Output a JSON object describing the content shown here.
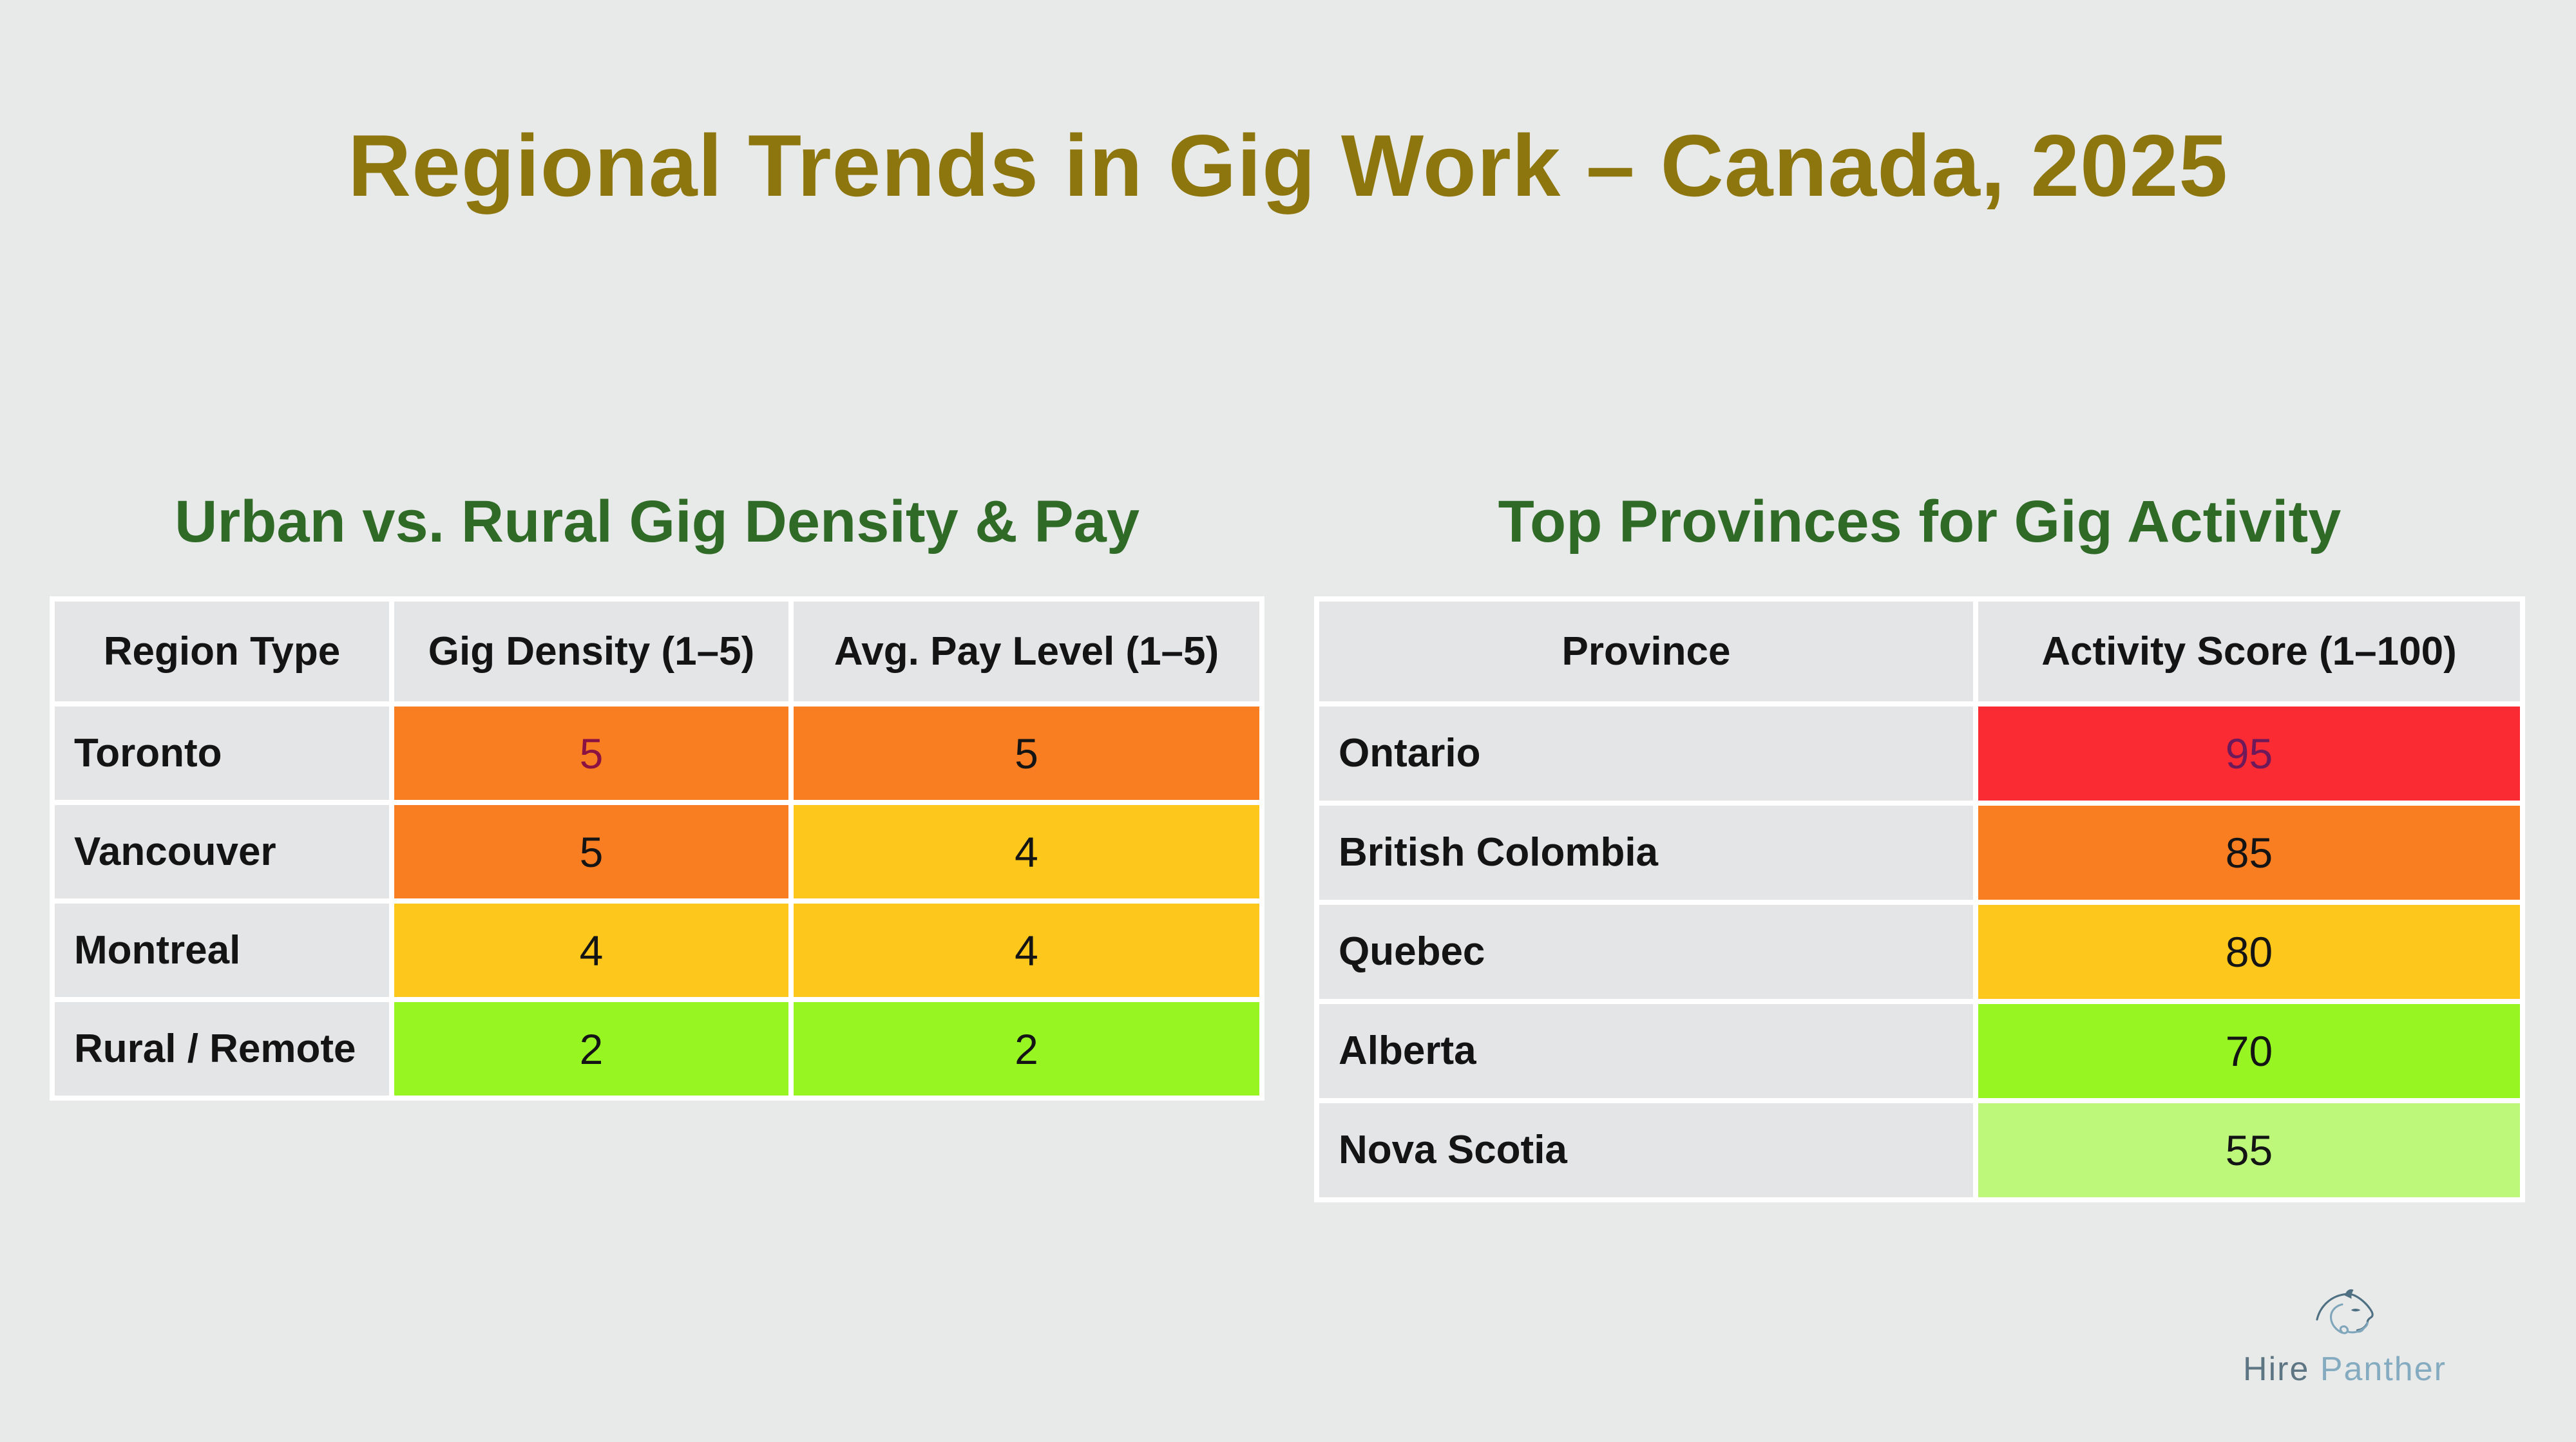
{
  "page": {
    "background": "#E8EAEA",
    "cell_gray": "#E3E5E6",
    "grid_line": "#FFFFFF"
  },
  "title": {
    "text": "Regional Trends in Gig Work – Canada, 2025",
    "color": "#8E760F"
  },
  "tables": [
    {
      "id": "urban-rural",
      "heading": "Urban vs. Rural Gig Density & Pay",
      "heading_color": "#2F6B27",
      "columns": [
        "Region Type",
        "Gig Density (1–5)",
        "Avg. Pay Level (1–5)"
      ],
      "rows": [
        {
          "label": "Toronto",
          "values": [
            {
              "text": "5",
              "bg": "#F97E22",
              "fg": "#8B1343"
            },
            {
              "text": "5",
              "bg": "#F97E22",
              "fg": "#141414"
            }
          ]
        },
        {
          "label": "Vancouver",
          "values": [
            {
              "text": "5",
              "bg": "#F97E22",
              "fg": "#141414"
            },
            {
              "text": "4",
              "bg": "#FDC71C",
              "fg": "#141414"
            }
          ]
        },
        {
          "label": "Montreal",
          "values": [
            {
              "text": "4",
              "bg": "#FDC71C",
              "fg": "#141414"
            },
            {
              "text": "4",
              "bg": "#FDC71C",
              "fg": "#141414"
            }
          ]
        },
        {
          "label": "Rural / Remote",
          "values": [
            {
              "text": "2",
              "bg": "#97F622",
              "fg": "#141414"
            },
            {
              "text": "2",
              "bg": "#97F622",
              "fg": "#141414"
            }
          ]
        }
      ]
    },
    {
      "id": "top-provinces",
      "heading": "Top Provinces for Gig Activity",
      "heading_color": "#2F6B27",
      "columns": [
        "Province",
        "Activity Score (1–100)"
      ],
      "rows": [
        {
          "label": "Ontario",
          "values": [
            {
              "text": "95",
              "bg": "#FB2B33",
              "fg": "#6E1A5A"
            }
          ]
        },
        {
          "label": "British Colombia",
          "values": [
            {
              "text": "85",
              "bg": "#F97E22",
              "fg": "#141414"
            }
          ]
        },
        {
          "label": "Quebec",
          "values": [
            {
              "text": "80",
              "bg": "#FDC71C",
              "fg": "#141414"
            }
          ]
        },
        {
          "label": "Alberta",
          "values": [
            {
              "text": "70",
              "bg": "#97F622",
              "fg": "#141414"
            }
          ]
        },
        {
          "label": "Nova Scotia",
          "values": [
            {
              "text": "55",
              "bg": "#BDF87A",
              "fg": "#141414"
            }
          ]
        }
      ]
    }
  ],
  "chart_data": [
    {
      "type": "table",
      "title": "Urban vs. Rural Gig Density & Pay",
      "columns": [
        "Region Type",
        "Gig Density (1–5)",
        "Avg. Pay Level (1–5)"
      ],
      "rows": [
        [
          "Toronto",
          5,
          5
        ],
        [
          "Vancouver",
          5,
          4
        ],
        [
          "Montreal",
          4,
          4
        ],
        [
          "Rural / Remote",
          2,
          2
        ]
      ]
    },
    {
      "type": "table",
      "title": "Top Provinces for Gig Activity",
      "columns": [
        "Province",
        "Activity Score (1–100)"
      ],
      "rows": [
        [
          "Ontario",
          95
        ],
        [
          "British Colombia",
          85
        ],
        [
          "Quebec",
          80
        ],
        [
          "Alberta",
          70
        ],
        [
          "Nova Scotia",
          55
        ]
      ]
    }
  ],
  "branding": {
    "word1": "Hire",
    "word2": "Panther",
    "word1_color": "#5E7683",
    "word2_color": "#85ABC0",
    "icon_dark": "#4E7082",
    "icon_light": "#7FA6BA"
  }
}
